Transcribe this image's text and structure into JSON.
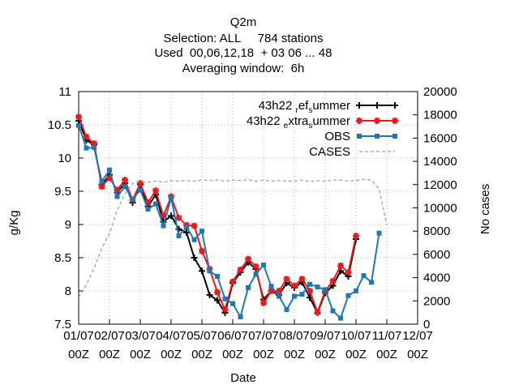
{
  "chart_data": {
    "type": "line",
    "title": "Q2m",
    "subtitle_lines": [
      "Selection: ALL     784 stations",
      "Used  00,06,12,18  + 03 06 ... 48",
      "Averaging window:  6h"
    ],
    "xlabel": "Date",
    "ylabel": "g/Kg",
    "y2label": "No cases",
    "xlim": [
      0,
      11
    ],
    "ylim": [
      7.5,
      11
    ],
    "y2lim": [
      0,
      20000
    ],
    "x_tick_values": [
      0,
      1,
      2,
      3,
      4,
      5,
      6,
      7,
      8,
      9,
      10,
      11
    ],
    "x_tick_labels": [
      [
        "01/07",
        "00Z"
      ],
      [
        "02/07",
        "00Z"
      ],
      [
        "03/07",
        "00Z"
      ],
      [
        "04/07",
        "00Z"
      ],
      [
        "05/07",
        "00Z"
      ],
      [
        "06/07",
        "00Z"
      ],
      [
        "07/07",
        "00Z"
      ],
      [
        "08/07",
        "00Z"
      ],
      [
        "09/07",
        "00Z"
      ],
      [
        "10/07",
        "00Z"
      ],
      [
        "11/07",
        "00Z"
      ],
      [
        "12/07",
        "00Z"
      ]
    ],
    "y_ticks": [
      "7.5",
      "8",
      "8.5",
      "9",
      "9.5",
      "10",
      "10.5",
      "11"
    ],
    "y2_ticks": [
      "0",
      "2000",
      "4000",
      "6000",
      "8000",
      "10000",
      "12000",
      "14000",
      "16000",
      "18000",
      "20000"
    ],
    "grid": true,
    "legend_position": "top-right",
    "x_step_days": 0.25,
    "series": [
      {
        "name": "43h22 _ref_summer",
        "legend_parts": [
          [
            "43h22 ",
            false
          ],
          [
            "r",
            true
          ],
          [
            "ef",
            false
          ],
          [
            "s",
            true
          ],
          [
            "ummer",
            false
          ]
        ],
        "color": "#000000",
        "marker": "plus",
        "axis": "y1",
        "dashed": false,
        "values": [
          10.56,
          10.27,
          10.2,
          9.6,
          9.75,
          9.48,
          9.62,
          9.33,
          9.6,
          9.27,
          9.45,
          9.04,
          9.13,
          8.93,
          8.88,
          8.5,
          8.3,
          7.94,
          7.86,
          7.67,
          8.12,
          8.28,
          8.43,
          8.33,
          7.87,
          8.0,
          7.94,
          8.12,
          8.05,
          8.13,
          7.9,
          7.67,
          7.97,
          8.08,
          8.3,
          8.22,
          8.78
        ]
      },
      {
        "name": "43h22 _extra_summer",
        "legend_parts": [
          [
            "43h22 ",
            false
          ],
          [
            "e",
            true
          ],
          [
            "xtra",
            false
          ],
          [
            "s",
            true
          ],
          [
            "ummer",
            false
          ]
        ],
        "color": "#e41a1c",
        "marker": "star",
        "axis": "y1",
        "dashed": false,
        "values": [
          10.62,
          10.32,
          10.22,
          9.57,
          9.7,
          9.52,
          9.67,
          9.37,
          9.62,
          9.33,
          9.51,
          9.13,
          9.42,
          9.1,
          8.99,
          8.98,
          8.6,
          8.33,
          7.98,
          7.72,
          8.14,
          8.32,
          8.48,
          8.37,
          7.82,
          8.0,
          8.0,
          8.18,
          8.08,
          8.18,
          8.0,
          7.68,
          8.0,
          8.15,
          8.38,
          8.28,
          8.83
        ]
      },
      {
        "name": "OBS",
        "legend_parts": [
          [
            "OBS",
            false
          ]
        ],
        "color": "#1f78b4",
        "marker": "square",
        "axis": "y1",
        "dashed": false,
        "values": [
          10.49,
          10.15,
          10.16,
          9.65,
          9.82,
          9.42,
          9.57,
          9.38,
          9.52,
          9.23,
          9.31,
          8.98,
          9.4,
          8.83,
          8.96,
          8.77,
          8.9,
          8.3,
          8.22,
          7.88,
          7.81,
          7.61,
          8.05,
          8.25,
          8.39,
          8.07,
          7.92,
          7.72,
          7.92,
          7.95,
          8.1,
          8.06,
          8.02,
          7.7,
          7.59,
          7.93,
          8.0,
          8.23,
          8.13,
          8.87
        ]
      },
      {
        "name": "CASES",
        "legend_parts": [
          [
            "CASES",
            false
          ]
        ],
        "color": "#9a9a9a",
        "marker": "none",
        "axis": "y2",
        "dashed": true,
        "values": [
          2300,
          3400,
          4800,
          6500,
          7800,
          9800,
          11200,
          12100,
          12250,
          12200,
          12300,
          12200,
          12320,
          12300,
          12350,
          12300,
          12400,
          12350,
          12400,
          12300,
          12380,
          12350,
          12420,
          12300,
          12380,
          12300,
          12350,
          12300,
          12300,
          12400,
          12250,
          12350,
          12300,
          12400,
          12380,
          12300,
          12350,
          12450,
          12400,
          11600,
          8500
        ]
      }
    ]
  }
}
